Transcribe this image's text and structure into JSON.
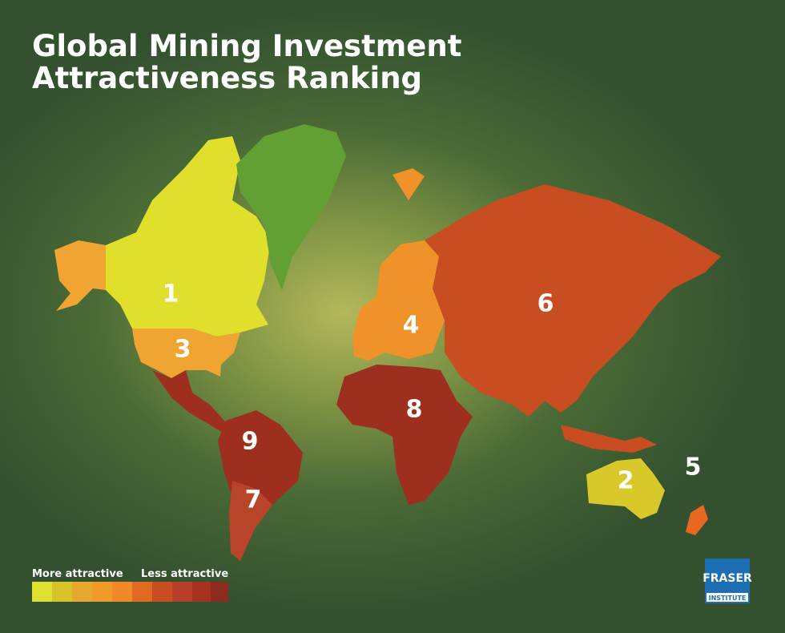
{
  "title": [
    "Global Mining Investment",
    "Attractiveness Ranking"
  ],
  "regions": [
    {
      "rank": 1
    },
    {
      "rank": 2
    },
    {
      "rank": 3
    },
    {
      "rank": 4
    },
    {
      "rank": 5
    },
    {
      "rank": 6
    },
    {
      "rank": 7
    },
    {
      "rank": 8
    },
    {
      "rank": 9
    }
  ],
  "legend": {
    "more": "More attractive",
    "less": "Less attractive"
  },
  "logo": {
    "name": "FRASER",
    "sub": "INSTITUTE"
  }
}
